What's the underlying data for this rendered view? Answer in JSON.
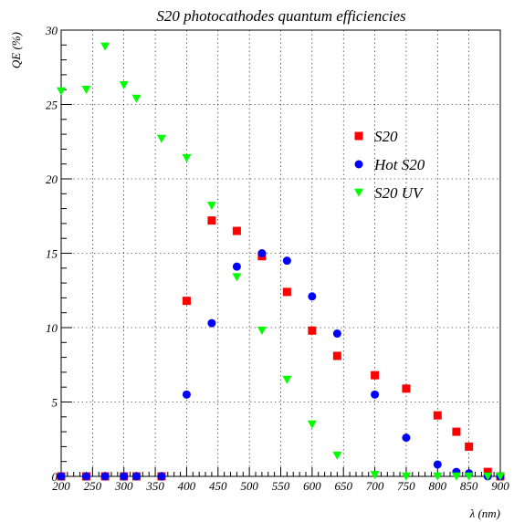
{
  "chart_data": {
    "type": "scatter",
    "title": "S20 photocathodes quantum efficiencies",
    "xlabel": "λ (nm)",
    "ylabel": "QE (%)",
    "xlim": [
      200,
      900
    ],
    "ylim": [
      0,
      30
    ],
    "xticks": [
      200,
      250,
      300,
      350,
      400,
      450,
      500,
      550,
      600,
      650,
      700,
      750,
      800,
      850,
      900
    ],
    "yticks": [
      0,
      5,
      10,
      15,
      20,
      25,
      30
    ],
    "grid": true,
    "legend_position": "right",
    "series": [
      {
        "name": "S20",
        "marker": "square",
        "color": "#ff0000",
        "points": [
          [
            200,
            0
          ],
          [
            240,
            0
          ],
          [
            270,
            0
          ],
          [
            300,
            0
          ],
          [
            320,
            0
          ],
          [
            360,
            0
          ],
          [
            400,
            11.8
          ],
          [
            440,
            17.2
          ],
          [
            480,
            16.5
          ],
          [
            520,
            14.8
          ],
          [
            560,
            12.4
          ],
          [
            600,
            9.8
          ],
          [
            640,
            8.1
          ],
          [
            700,
            6.8
          ],
          [
            750,
            5.9
          ],
          [
            800,
            4.1
          ],
          [
            830,
            3.0
          ],
          [
            850,
            2.0
          ],
          [
            880,
            0.3
          ],
          [
            900,
            0
          ]
        ]
      },
      {
        "name": "Hot S20",
        "marker": "circle",
        "color": "#0000ff",
        "points": [
          [
            200,
            0
          ],
          [
            240,
            0
          ],
          [
            270,
            0
          ],
          [
            300,
            0
          ],
          [
            320,
            0
          ],
          [
            360,
            0
          ],
          [
            400,
            5.5
          ],
          [
            440,
            10.3
          ],
          [
            480,
            14.1
          ],
          [
            520,
            15.0
          ],
          [
            560,
            14.5
          ],
          [
            600,
            12.1
          ],
          [
            640,
            9.6
          ],
          [
            700,
            5.5
          ],
          [
            750,
            2.6
          ],
          [
            800,
            0.8
          ],
          [
            830,
            0.3
          ],
          [
            850,
            0.2
          ],
          [
            880,
            0
          ],
          [
            900,
            0
          ]
        ]
      },
      {
        "name": "S20 UV",
        "marker": "triangle-down",
        "color": "#00ff00",
        "points": [
          [
            200,
            25.9
          ],
          [
            240,
            26.0
          ],
          [
            270,
            28.9
          ],
          [
            300,
            26.3
          ],
          [
            320,
            25.4
          ],
          [
            360,
            22.7
          ],
          [
            400,
            21.4
          ],
          [
            440,
            18.2
          ],
          [
            480,
            13.4
          ],
          [
            520,
            9.8
          ],
          [
            560,
            6.5
          ],
          [
            600,
            3.5
          ],
          [
            640,
            1.4
          ],
          [
            700,
            0.1
          ],
          [
            750,
            0
          ],
          [
            800,
            0
          ],
          [
            830,
            0
          ],
          [
            850,
            0
          ],
          [
            880,
            0
          ],
          [
            900,
            0
          ]
        ]
      }
    ]
  }
}
